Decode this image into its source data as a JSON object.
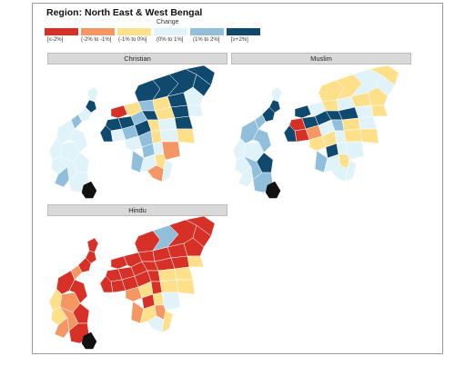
{
  "title": "Region: North East & West Bengal",
  "legend": {
    "title": "Change",
    "items": [
      {
        "label": "[≤-2%]",
        "color": "#d73027"
      },
      {
        "label": "(-2% to -1%]",
        "color": "#f49762"
      },
      {
        "label": "(-1% to 0%]",
        "color": "#fee08b"
      },
      {
        "label": "(0% to 1%]",
        "color": "#e0f3f8"
      },
      {
        "label": "(1% to 2%]",
        "color": "#91bfdb"
      },
      {
        "label": "[≥+2%]",
        "color": "#0f4a6e"
      }
    ]
  },
  "panels": [
    {
      "label": "Christian"
    },
    {
      "label": "Muslim"
    },
    {
      "label": "Hindu"
    }
  ]
}
